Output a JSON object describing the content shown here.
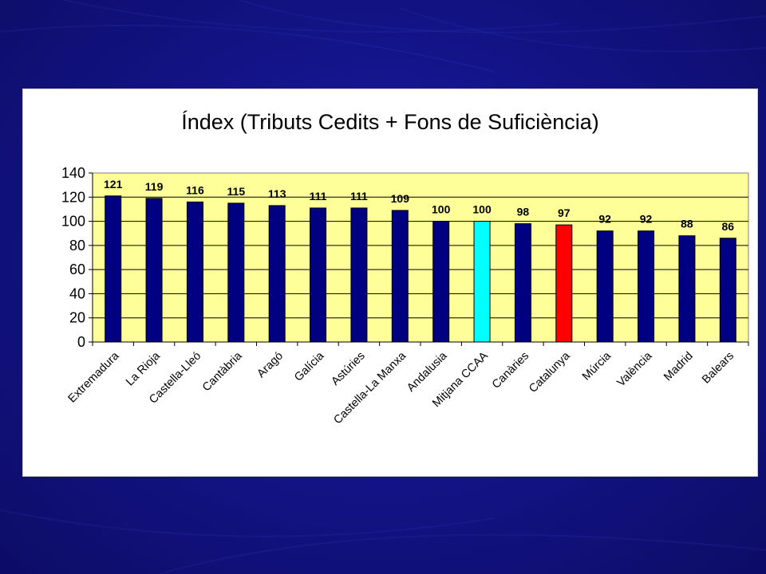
{
  "colors": {
    "background": "#14148a",
    "plot_area": "#ffff99",
    "bar_default": "#000080",
    "bar_average": "#00ffff",
    "bar_catalunya": "#ff0000"
  },
  "chart_data": {
    "type": "bar",
    "title": "Índex (Tributs Cedits + Fons de Suficiència)",
    "categories": [
      "Extremadura",
      "La Rioja",
      "Castella-Lleó",
      "Cantàbria",
      "Aragó",
      "Galícia",
      "Astúries",
      "Castella-La Manxa",
      "Andalusia",
      "Mitjana CCAA",
      "Canàries",
      "Catalunya",
      "Múrcia",
      "València",
      "Madrid",
      "Balears"
    ],
    "values": [
      121,
      119,
      116,
      115,
      113,
      111,
      111,
      109,
      100,
      100,
      98,
      97,
      92,
      92,
      88,
      86
    ],
    "data_labels": [
      "121",
      "119",
      "116",
      "115",
      "113",
      "111",
      "111",
      "109",
      "100",
      "100",
      "98",
      "97",
      "92",
      "92",
      "88",
      "86"
    ],
    "bar_colors": [
      "#000080",
      "#000080",
      "#000080",
      "#000080",
      "#000080",
      "#000080",
      "#000080",
      "#000080",
      "#000080",
      "#00ffff",
      "#000080",
      "#ff0000",
      "#000080",
      "#000080",
      "#000080",
      "#000080"
    ],
    "ylim": [
      0,
      140
    ],
    "yticks": [
      0,
      20,
      40,
      60,
      80,
      100,
      120,
      140
    ],
    "ytick_labels": [
      "0",
      "20",
      "40",
      "60",
      "80",
      "100",
      "120",
      "140"
    ],
    "grid": true,
    "legend": false,
    "xlabel": "",
    "ylabel": ""
  }
}
